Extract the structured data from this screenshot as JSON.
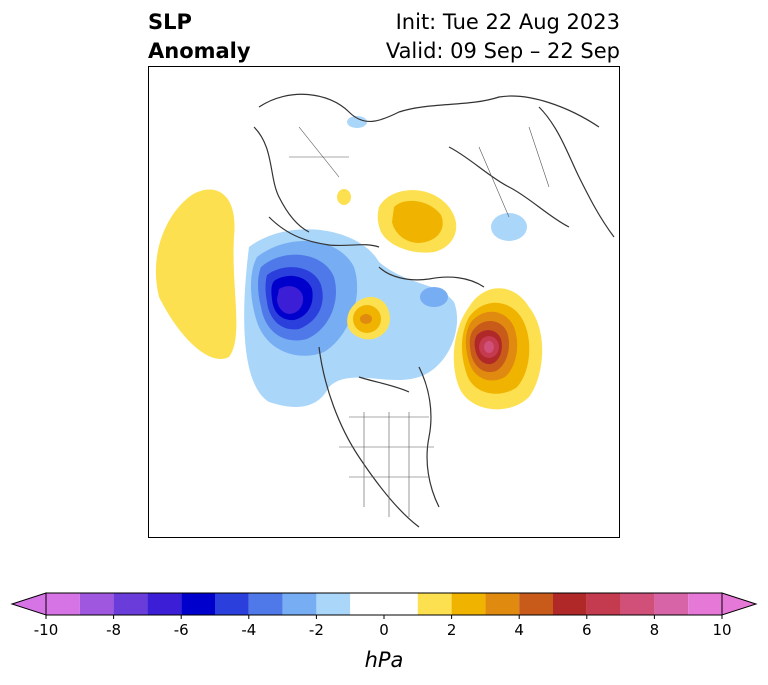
{
  "title": {
    "left_line1": "SLP",
    "left_line2": "Anomaly",
    "init": "Init: Tue 22 Aug 2023",
    "valid": "Valid: 09 Sep – 22 Sep"
  },
  "colorbar": {
    "unit": "hPa",
    "ticks": [
      "-10",
      "-8",
      "-6",
      "-4",
      "-2",
      "0",
      "2",
      "4",
      "6",
      "8",
      "10"
    ],
    "bins": [
      {
        "from": -10,
        "to": -9,
        "color": "#d674e6"
      },
      {
        "from": -9,
        "to": -8,
        "color": "#9f57e0"
      },
      {
        "from": -8,
        "to": -7,
        "color": "#6a3ddb"
      },
      {
        "from": -7,
        "to": -6,
        "color": "#3b1ed6"
      },
      {
        "from": -6,
        "to": -5,
        "color": "#0000cc"
      },
      {
        "from": -5,
        "to": -4,
        "color": "#2a3fdc"
      },
      {
        "from": -4,
        "to": -3,
        "color": "#4f79e8"
      },
      {
        "from": -3,
        "to": -2,
        "color": "#77adf2"
      },
      {
        "from": -2,
        "to": -1,
        "color": "#aad6fa"
      },
      {
        "from": -1,
        "to": 1,
        "color": "#ffffff"
      },
      {
        "from": 1,
        "to": 2,
        "color": "#fde050"
      },
      {
        "from": 2,
        "to": 3,
        "color": "#f0b400"
      },
      {
        "from": 3,
        "to": 4,
        "color": "#e08a10"
      },
      {
        "from": 4,
        "to": 5,
        "color": "#c85a1a"
      },
      {
        "from": 5,
        "to": 6,
        "color": "#b02828"
      },
      {
        "from": 6,
        "to": 7,
        "color": "#c43a4e"
      },
      {
        "from": 7,
        "to": 8,
        "color": "#d0507a"
      },
      {
        "from": 8,
        "to": 9,
        "color": "#d864a8"
      },
      {
        "from": 9,
        "to": 10,
        "color": "#e678d8"
      }
    ],
    "extend_low_color": "#d674e6",
    "extend_high_color": "#e678d8"
  },
  "map": {
    "projection": "north-polar-stereographic",
    "features": [
      {
        "name": "pacific-high-anomaly",
        "sign": "positive",
        "peak_hpa": 1.5
      },
      {
        "name": "gulf-of-alaska-low-anomaly",
        "sign": "negative",
        "peak_hpa": -6.5
      },
      {
        "name": "arctic-high-anomaly",
        "sign": "positive",
        "peak_hpa": 3
      },
      {
        "name": "siberian-high-anomaly",
        "sign": "positive",
        "peak_hpa": 2.5
      },
      {
        "name": "north-atlantic-high-anomaly",
        "sign": "positive",
        "peak_hpa": 7
      }
    ]
  }
}
